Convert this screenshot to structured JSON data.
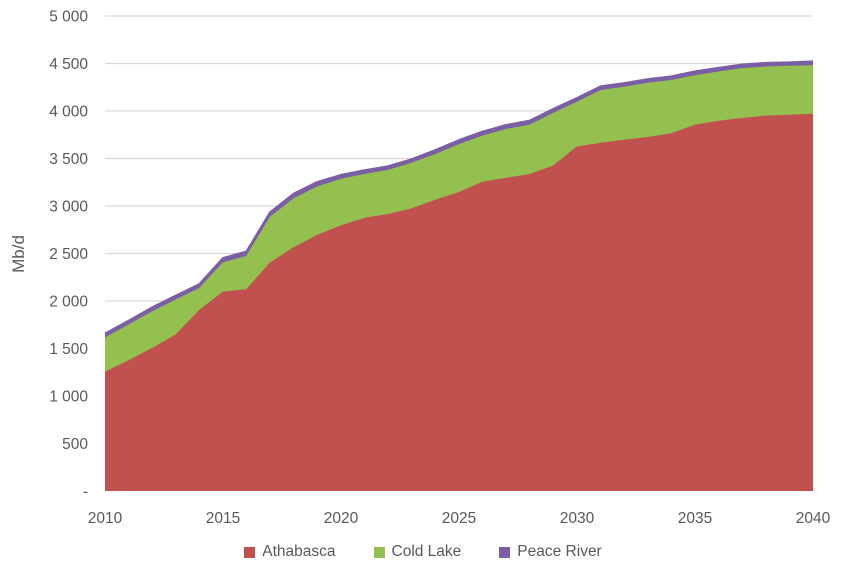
{
  "chart_data": {
    "type": "area",
    "stacked": true,
    "title": "",
    "xlabel": "",
    "ylabel": "Mb/d",
    "ylim": [
      0,
      5000
    ],
    "grid": "horizontal-light-gray",
    "legend_position": "bottom-center",
    "x": [
      2010,
      2011,
      2012,
      2013,
      2014,
      2015,
      2016,
      2017,
      2018,
      2019,
      2020,
      2021,
      2022,
      2023,
      2024,
      2025,
      2026,
      2027,
      2028,
      2029,
      2030,
      2031,
      2032,
      2033,
      2034,
      2035,
      2036,
      2037,
      2038,
      2039,
      2040
    ],
    "x_tick_labels": [
      "2010",
      "2015",
      "2020",
      "2025",
      "2030",
      "2035",
      "2040"
    ],
    "x_tick_values": [
      2010,
      2015,
      2020,
      2025,
      2030,
      2035,
      2040
    ],
    "y_ticks": [
      {
        "value": 0,
        "label": "-"
      },
      {
        "value": 500,
        "label": "500"
      },
      {
        "value": 1000,
        "label": "1 000"
      },
      {
        "value": 1500,
        "label": "1 500"
      },
      {
        "value": 2000,
        "label": "2 000"
      },
      {
        "value": 2500,
        "label": "2 500"
      },
      {
        "value": 3000,
        "label": "3 000"
      },
      {
        "value": 3500,
        "label": "3 500"
      },
      {
        "value": 4000,
        "label": "4 000"
      },
      {
        "value": 4500,
        "label": "4 500"
      },
      {
        "value": 5000,
        "label": "5 000"
      }
    ],
    "series": [
      {
        "name": "Athabasca",
        "color": "#c0514e",
        "values": [
          1250,
          1370,
          1500,
          1640,
          1900,
          2090,
          2120,
          2400,
          2560,
          2690,
          2790,
          2870,
          2910,
          2970,
          3060,
          3140,
          3250,
          3290,
          3330,
          3420,
          3620,
          3660,
          3690,
          3720,
          3760,
          3850,
          3890,
          3920,
          3945,
          3955,
          3965
        ]
      },
      {
        "name": "Cold Lake",
        "color": "#94c050",
        "values": [
          360,
          375,
          385,
          370,
          230,
          310,
          350,
          480,
          515,
          510,
          490,
          460,
          465,
          480,
          480,
          505,
          485,
          515,
          520,
          555,
          470,
          555,
          560,
          570,
          560,
          520,
          520,
          525,
          517,
          514,
          511
        ]
      },
      {
        "name": "Peace River",
        "color": "#7b5fa5",
        "values": [
          45,
          46,
          46,
          45,
          46,
          50,
          50,
          53,
          53,
          52,
          45,
          45,
          42,
          40,
          47,
          47,
          46,
          46,
          47,
          45,
          45,
          42,
          42,
          44,
          42,
          45,
          42,
          42,
          42,
          41,
          44
        ]
      }
    ],
    "colors": {
      "grid_line": "#d9d9d9",
      "axis_text": "#595959",
      "background": "#ffffff"
    }
  }
}
